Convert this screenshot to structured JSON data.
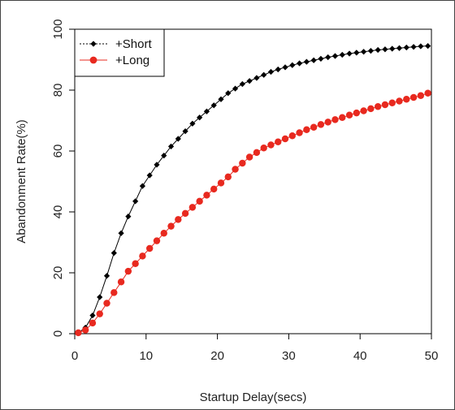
{
  "chart_data": {
    "type": "line",
    "title": "",
    "xlabel": "Startup Delay(secs)",
    "ylabel": "Abandonment Rate(%)",
    "xlim": [
      0,
      50
    ],
    "ylim": [
      0,
      100
    ],
    "x_ticks": [
      0,
      10,
      20,
      30,
      40,
      50
    ],
    "y_ticks": [
      0,
      20,
      40,
      60,
      80,
      100
    ],
    "x_tick_labels": [
      "0",
      "10",
      "20",
      "30",
      "40",
      "50"
    ],
    "y_tick_labels": [
      "0",
      "20",
      "40",
      "60",
      "80",
      "100"
    ],
    "grid": false,
    "legend_position": "top-left",
    "x": [
      0.5,
      1.5,
      2.5,
      3.5,
      4.5,
      5.5,
      6.5,
      7.5,
      8.5,
      9.5,
      10.5,
      11.5,
      12.5,
      13.5,
      14.5,
      15.5,
      16.5,
      17.5,
      18.5,
      19.5,
      20.5,
      21.5,
      22.5,
      23.5,
      24.5,
      25.5,
      26.5,
      27.5,
      28.5,
      29.5,
      30.5,
      31.5,
      32.5,
      33.5,
      34.5,
      35.5,
      36.5,
      37.5,
      38.5,
      39.5,
      40.5,
      41.5,
      42.5,
      43.5,
      44.5,
      45.5,
      46.5,
      47.5,
      48.5,
      49.5
    ],
    "series": [
      {
        "name": "+Short",
        "color": "#000000",
        "marker": "diamond",
        "line_style": "solid",
        "values": [
          0.3,
          2.0,
          6.0,
          12.0,
          19.0,
          26.5,
          33.0,
          38.5,
          43.5,
          48.5,
          52.0,
          55.5,
          58.5,
          61.5,
          64.0,
          66.5,
          69.0,
          71.0,
          73.0,
          75.0,
          77.0,
          79.0,
          80.5,
          82.0,
          83.0,
          84.0,
          85.0,
          86.0,
          86.8,
          87.5,
          88.2,
          88.8,
          89.3,
          89.8,
          90.3,
          90.8,
          91.2,
          91.6,
          92.0,
          92.3,
          92.6,
          92.9,
          93.2,
          93.4,
          93.6,
          93.8,
          94.0,
          94.2,
          94.4,
          94.5
        ]
      },
      {
        "name": "+Long",
        "color": "#e8291f",
        "marker": "circle",
        "line_style": "solid",
        "values": [
          0.3,
          1.2,
          3.5,
          6.5,
          10.0,
          13.5,
          17.0,
          20.5,
          23.0,
          25.5,
          28.0,
          30.5,
          33.0,
          35.3,
          37.5,
          39.5,
          41.5,
          43.5,
          45.5,
          47.5,
          49.5,
          51.5,
          54.0,
          56.0,
          58.0,
          59.5,
          61.0,
          62.0,
          63.0,
          64.0,
          65.0,
          66.0,
          67.0,
          67.8,
          68.7,
          69.5,
          70.3,
          71.0,
          71.8,
          72.5,
          73.2,
          73.9,
          74.6,
          75.2,
          75.8,
          76.4,
          77.0,
          77.6,
          78.2,
          79.0
        ]
      }
    ]
  }
}
